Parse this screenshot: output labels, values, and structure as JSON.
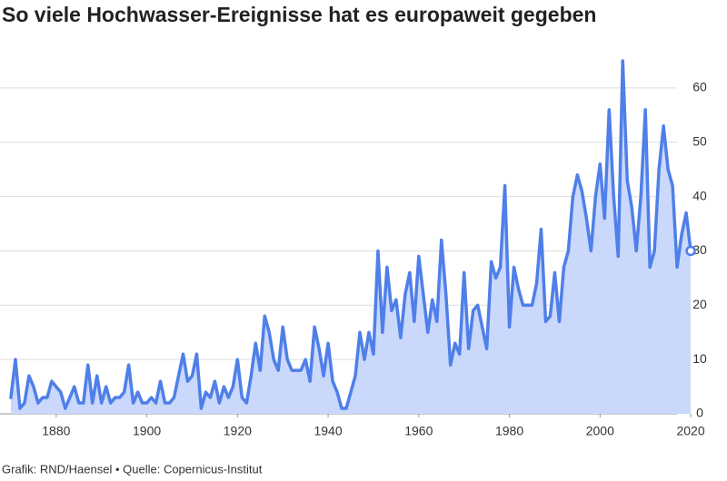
{
  "chart_data": {
    "type": "area",
    "title": "So viele Hochwasser-Ereignisse hat es europaweit gegeben",
    "source": "Grafik: RND/Haensel • Quelle: Copernicus-Institut",
    "x": [
      1870,
      1871,
      1872,
      1873,
      1874,
      1875,
      1876,
      1877,
      1878,
      1879,
      1880,
      1881,
      1882,
      1883,
      1884,
      1885,
      1886,
      1887,
      1888,
      1889,
      1890,
      1891,
      1892,
      1893,
      1894,
      1895,
      1896,
      1897,
      1898,
      1899,
      1900,
      1901,
      1902,
      1903,
      1904,
      1905,
      1906,
      1907,
      1908,
      1909,
      1910,
      1911,
      1912,
      1913,
      1914,
      1915,
      1916,
      1917,
      1918,
      1919,
      1920,
      1921,
      1922,
      1923,
      1924,
      1925,
      1926,
      1927,
      1928,
      1929,
      1930,
      1931,
      1932,
      1933,
      1934,
      1935,
      1936,
      1937,
      1938,
      1939,
      1940,
      1941,
      1942,
      1943,
      1944,
      1945,
      1946,
      1947,
      1948,
      1949,
      1950,
      1951,
      1952,
      1953,
      1954,
      1955,
      1956,
      1957,
      1958,
      1959,
      1960,
      1961,
      1962,
      1963,
      1964,
      1965,
      1966,
      1967,
      1968,
      1969,
      1970,
      1971,
      1972,
      1973,
      1974,
      1975,
      1976,
      1977,
      1978,
      1979,
      1980,
      1981,
      1982,
      1983,
      1984,
      1985,
      1986,
      1987,
      1988,
      1989,
      1990,
      1991,
      1992,
      1993,
      1994,
      1995,
      1996,
      1997,
      1998,
      1999,
      2000,
      2001,
      2002,
      2003,
      2004,
      2005,
      2006,
      2007,
      2008,
      2009,
      2010,
      2011,
      2012,
      2013,
      2014,
      2015,
      2016,
      2017,
      2018,
      2019,
      2020
    ],
    "series": [
      {
        "name": "Hochwasser-Ereignisse",
        "color": "#4f7fe8",
        "fill": "#c9d8fb",
        "values": [
          3,
          10,
          1,
          2,
          7,
          5,
          2,
          3,
          3,
          6,
          5,
          4,
          1,
          3,
          5,
          2,
          2,
          9,
          2,
          7,
          2,
          5,
          2,
          3,
          3,
          4,
          9,
          2,
          4,
          2,
          2,
          3,
          2,
          6,
          2,
          2,
          3,
          7,
          11,
          6,
          7,
          11,
          1,
          4,
          3,
          6,
          2,
          5,
          3,
          5,
          10,
          3,
          2,
          7,
          13,
          8,
          18,
          15,
          10,
          8,
          16,
          10,
          8,
          8,
          8,
          10,
          6,
          16,
          12,
          7,
          13,
          6,
          4,
          1,
          1,
          4,
          7,
          15,
          10,
          15,
          11,
          30,
          15,
          27,
          19,
          21,
          14,
          22,
          26,
          17,
          29,
          22,
          15,
          21,
          17,
          32,
          22,
          9,
          13,
          11,
          26,
          12,
          19,
          20,
          16,
          12,
          28,
          25,
          27,
          42,
          16,
          27,
          23,
          20,
          20,
          20,
          24,
          34,
          17,
          18,
          26,
          17,
          27,
          30,
          40,
          44,
          41,
          36,
          30,
          40,
          46,
          36,
          56,
          40,
          29,
          65,
          43,
          38,
          30,
          40,
          56,
          27,
          30,
          45,
          53,
          45,
          42,
          27,
          33,
          37,
          30
        ]
      }
    ],
    "xlim": [
      1868,
      2024
    ],
    "xticks": [
      1880,
      1900,
      1920,
      1940,
      1960,
      1980,
      2000,
      2020
    ],
    "ylim": [
      0,
      66
    ],
    "yticks": [
      0,
      10,
      20,
      30,
      40,
      50,
      60
    ],
    "grid": true
  }
}
